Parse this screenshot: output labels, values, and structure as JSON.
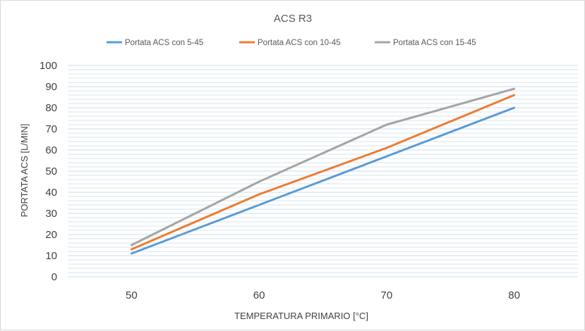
{
  "chart_data": {
    "type": "line",
    "title": "ACS R3",
    "xlabel": "TEMPERATURA PRIMARIO [°C]",
    "ylabel": "PORTATA ACS [L/MIN]",
    "x": [
      50,
      60,
      70,
      80
    ],
    "xticks": [
      "50",
      "60",
      "70",
      "80"
    ],
    "xlim": [
      45,
      85
    ],
    "ylim": [
      0,
      100
    ],
    "yticks": [
      "0",
      "10",
      "20",
      "30",
      "40",
      "50",
      "60",
      "70",
      "80",
      "90",
      "100"
    ],
    "grid": true,
    "legend_position": "top",
    "series": [
      {
        "name": "Portata ACS con 5-45",
        "color": "#5b9bd5",
        "values": [
          11,
          34,
          57,
          80
        ]
      },
      {
        "name": "Portata ACS con 10-45",
        "color": "#ed7d31",
        "values": [
          13,
          39,
          61,
          86
        ]
      },
      {
        "name": "Portata ACS con 15-45",
        "color": "#a5a5a5",
        "values": [
          15,
          45,
          72,
          89
        ]
      }
    ]
  }
}
